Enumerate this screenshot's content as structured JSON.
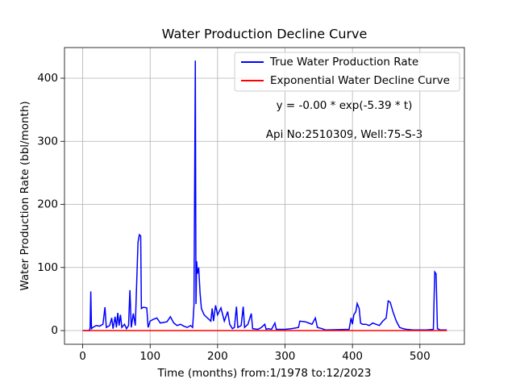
{
  "chart_data": {
    "type": "line",
    "title": "Water Production Decline Curve",
    "xlabel": "Time (months) from:1/1978 to:12/2023",
    "ylabel": "Water Production Rate (bbl/month)",
    "annotations": [
      "y = -0.00 * exp(-5.39 * t)",
      "Api No:2510309, Well:75-S-3"
    ],
    "xlim": [
      -27,
      566
    ],
    "ylim": [
      -21.7,
      448.6
    ],
    "xticks": [
      0,
      100,
      200,
      300,
      400,
      500
    ],
    "yticks": [
      0,
      100,
      200,
      300,
      400
    ],
    "grid": true,
    "legend": "upper right",
    "series": [
      {
        "name": "True Water Production Rate",
        "color": "#0000ff",
        "x": [
          0,
          10,
          11,
          12,
          13,
          15,
          20,
          25,
          30,
          33,
          35,
          40,
          43,
          45,
          48,
          50,
          52,
          54,
          56,
          58,
          62,
          65,
          68,
          70,
          72,
          75,
          78,
          82,
          84,
          86,
          87,
          90,
          95,
          97,
          100,
          105,
          110,
          115,
          120,
          125,
          130,
          135,
          140,
          145,
          150,
          155,
          160,
          163,
          165,
          167,
          168,
          169,
          170,
          172,
          174,
          176,
          180,
          185,
          190,
          192,
          194,
          197,
          200,
          205,
          210,
          215,
          218,
          222,
          225,
          228,
          230,
          235,
          238,
          240,
          245,
          250,
          252,
          260,
          265,
          270,
          272,
          275,
          280,
          285,
          287,
          290,
          300,
          310,
          320,
          322,
          330,
          335,
          340,
          345,
          348,
          355,
          360,
          395,
          398,
          400,
          402,
          405,
          407,
          410,
          412,
          415,
          420,
          425,
          430,
          435,
          440,
          445,
          450,
          453,
          456,
          460,
          465,
          470,
          475,
          480,
          490,
          500,
          510,
          520,
          522,
          524,
          526,
          530,
          540
        ],
        "values": [
          0,
          0,
          5,
          62,
          3,
          5,
          8,
          7,
          10,
          37,
          5,
          8,
          20,
          3,
          22,
          5,
          28,
          8,
          25,
          5,
          10,
          3,
          8,
          64,
          5,
          27,
          8,
          140,
          152,
          150,
          35,
          37,
          36,
          5,
          15,
          18,
          20,
          12,
          13,
          14,
          22,
          12,
          8,
          10,
          7,
          5,
          8,
          5,
          40,
          428,
          42,
          110,
          90,
          100,
          60,
          35,
          25,
          20,
          15,
          35,
          15,
          40,
          25,
          36,
          15,
          30,
          10,
          3,
          5,
          38,
          5,
          8,
          38,
          5,
          10,
          27,
          3,
          2,
          5,
          10,
          2,
          3,
          2,
          12,
          2,
          2,
          2,
          3,
          5,
          15,
          14,
          12,
          10,
          20,
          5,
          3,
          1,
          2,
          20,
          10,
          25,
          30,
          43,
          35,
          12,
          10,
          10,
          8,
          12,
          10,
          8,
          15,
          20,
          47,
          45,
          30,
          15,
          5,
          3,
          2,
          1,
          1,
          1,
          2,
          93,
          90,
          3,
          1,
          1
        ]
      },
      {
        "name": "Exponential Water Decline Curve",
        "color": "#ff0000",
        "x": [
          0,
          540
        ],
        "values": [
          0,
          0
        ]
      }
    ]
  }
}
